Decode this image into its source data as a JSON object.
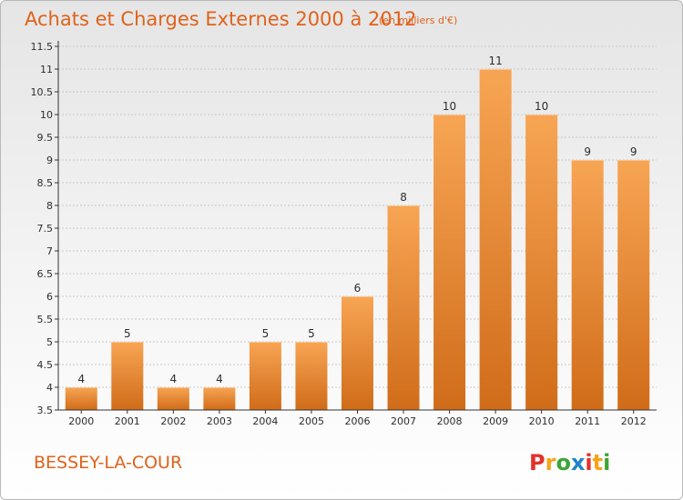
{
  "header": {
    "title": "Achats et Charges Externes 2000 à 2012",
    "unit": "(en milliers d'€)"
  },
  "footer": {
    "commune": "BESSEY-LA-COUR",
    "logo": "Proxiti",
    "logo_colors": [
      "#e4312b",
      "#f7a21a",
      "#3fa535",
      "#1f86c8",
      "#e4312b",
      "#f7a21a",
      "#3fa535"
    ]
  },
  "colors": {
    "bar_light": "#f7a554",
    "bar_dark": "#d06c19",
    "title": "#e0621a",
    "axis": "#333333",
    "grid": "#c8c8c8"
  },
  "chart_data": {
    "type": "bar",
    "title": "Achats et Charges Externes 2000 à 2012",
    "subtitle": "(en milliers d'€)",
    "xlabel": "",
    "ylabel": "",
    "categories": [
      "2000",
      "2001",
      "2002",
      "2003",
      "2004",
      "2005",
      "2006",
      "2007",
      "2008",
      "2009",
      "2010",
      "2011",
      "2012"
    ],
    "values": [
      4,
      5,
      4,
      4,
      5,
      5,
      6,
      8,
      10,
      11,
      10,
      9,
      9
    ],
    "ylim": [
      3.5,
      11.5
    ],
    "yticks": [
      "3.5",
      "4",
      "4.5",
      "5",
      "5.5",
      "6",
      "6.5",
      "7",
      "7.5",
      "8",
      "8.5",
      "9",
      "9.5",
      "10",
      "10.5",
      "11",
      "11.5"
    ],
    "grid": true,
    "legend": "none"
  }
}
